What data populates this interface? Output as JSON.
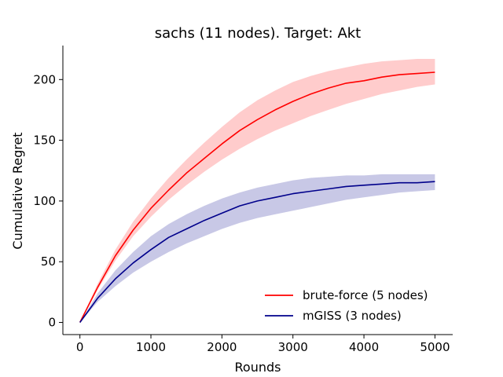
{
  "chart_data": {
    "type": "line",
    "title": "sachs (11 nodes). Target: Akt",
    "xlabel": "Rounds",
    "ylabel": "Cumulative Regret",
    "xlim": [
      -240,
      5250
    ],
    "ylim": [
      -10,
      228
    ],
    "xticks": [
      0,
      1000,
      2000,
      3000,
      4000,
      5000
    ],
    "xtick_labels": [
      "0",
      "1000",
      "2000",
      "3000",
      "4000",
      "5000"
    ],
    "yticks": [
      0,
      50,
      100,
      150,
      200
    ],
    "ytick_labels": [
      "0",
      "50",
      "100",
      "150",
      "200"
    ],
    "grid": false,
    "legend_position": "lower-right",
    "series": [
      {
        "name": "brute-force (5 nodes)",
        "color": "#ff0000",
        "band_color": "#ffcccc",
        "x": [
          0,
          250,
          500,
          750,
          1000,
          1250,
          1500,
          1750,
          2000,
          2250,
          2500,
          2750,
          3000,
          3250,
          3500,
          3750,
          4000,
          4250,
          4500,
          4750,
          5000
        ],
        "y": [
          0,
          29,
          55,
          76,
          94,
          109,
          123,
          135,
          147,
          158,
          167,
          175,
          182,
          188,
          193,
          197,
          199,
          202,
          204,
          205,
          206
        ],
        "lower": [
          0,
          27,
          51,
          71,
          87,
          101,
          113,
          124,
          134,
          143,
          151,
          158,
          164,
          170,
          175,
          180,
          184,
          188,
          191,
          194,
          196
        ],
        "upper": [
          0,
          32,
          60,
          83,
          102,
          119,
          134,
          148,
          161,
          173,
          183,
          191,
          198,
          203,
          207,
          210,
          213,
          215,
          216,
          217,
          217
        ]
      },
      {
        "name": "mGISS (3 nodes)",
        "color": "#00008b",
        "band_color": "#c8c8e6",
        "x": [
          0,
          250,
          500,
          750,
          1000,
          1250,
          1500,
          1750,
          2000,
          2250,
          2500,
          2750,
          3000,
          3250,
          3500,
          3750,
          4000,
          4250,
          4500,
          4750,
          5000
        ],
        "y": [
          0,
          20,
          36,
          49,
          60,
          70,
          77,
          84,
          90,
          96,
          100,
          103,
          106,
          108,
          110,
          112,
          113,
          114,
          115,
          115,
          116
        ],
        "lower": [
          0,
          17,
          30,
          41,
          50,
          58,
          65,
          71,
          77,
          82,
          86,
          89,
          92,
          95,
          98,
          101,
          103,
          105,
          107,
          108,
          109
        ],
        "upper": [
          0,
          24,
          43,
          58,
          71,
          81,
          89,
          96,
          102,
          107,
          111,
          114,
          117,
          119,
          120,
          121,
          121,
          122,
          122,
          122,
          122
        ]
      }
    ]
  }
}
